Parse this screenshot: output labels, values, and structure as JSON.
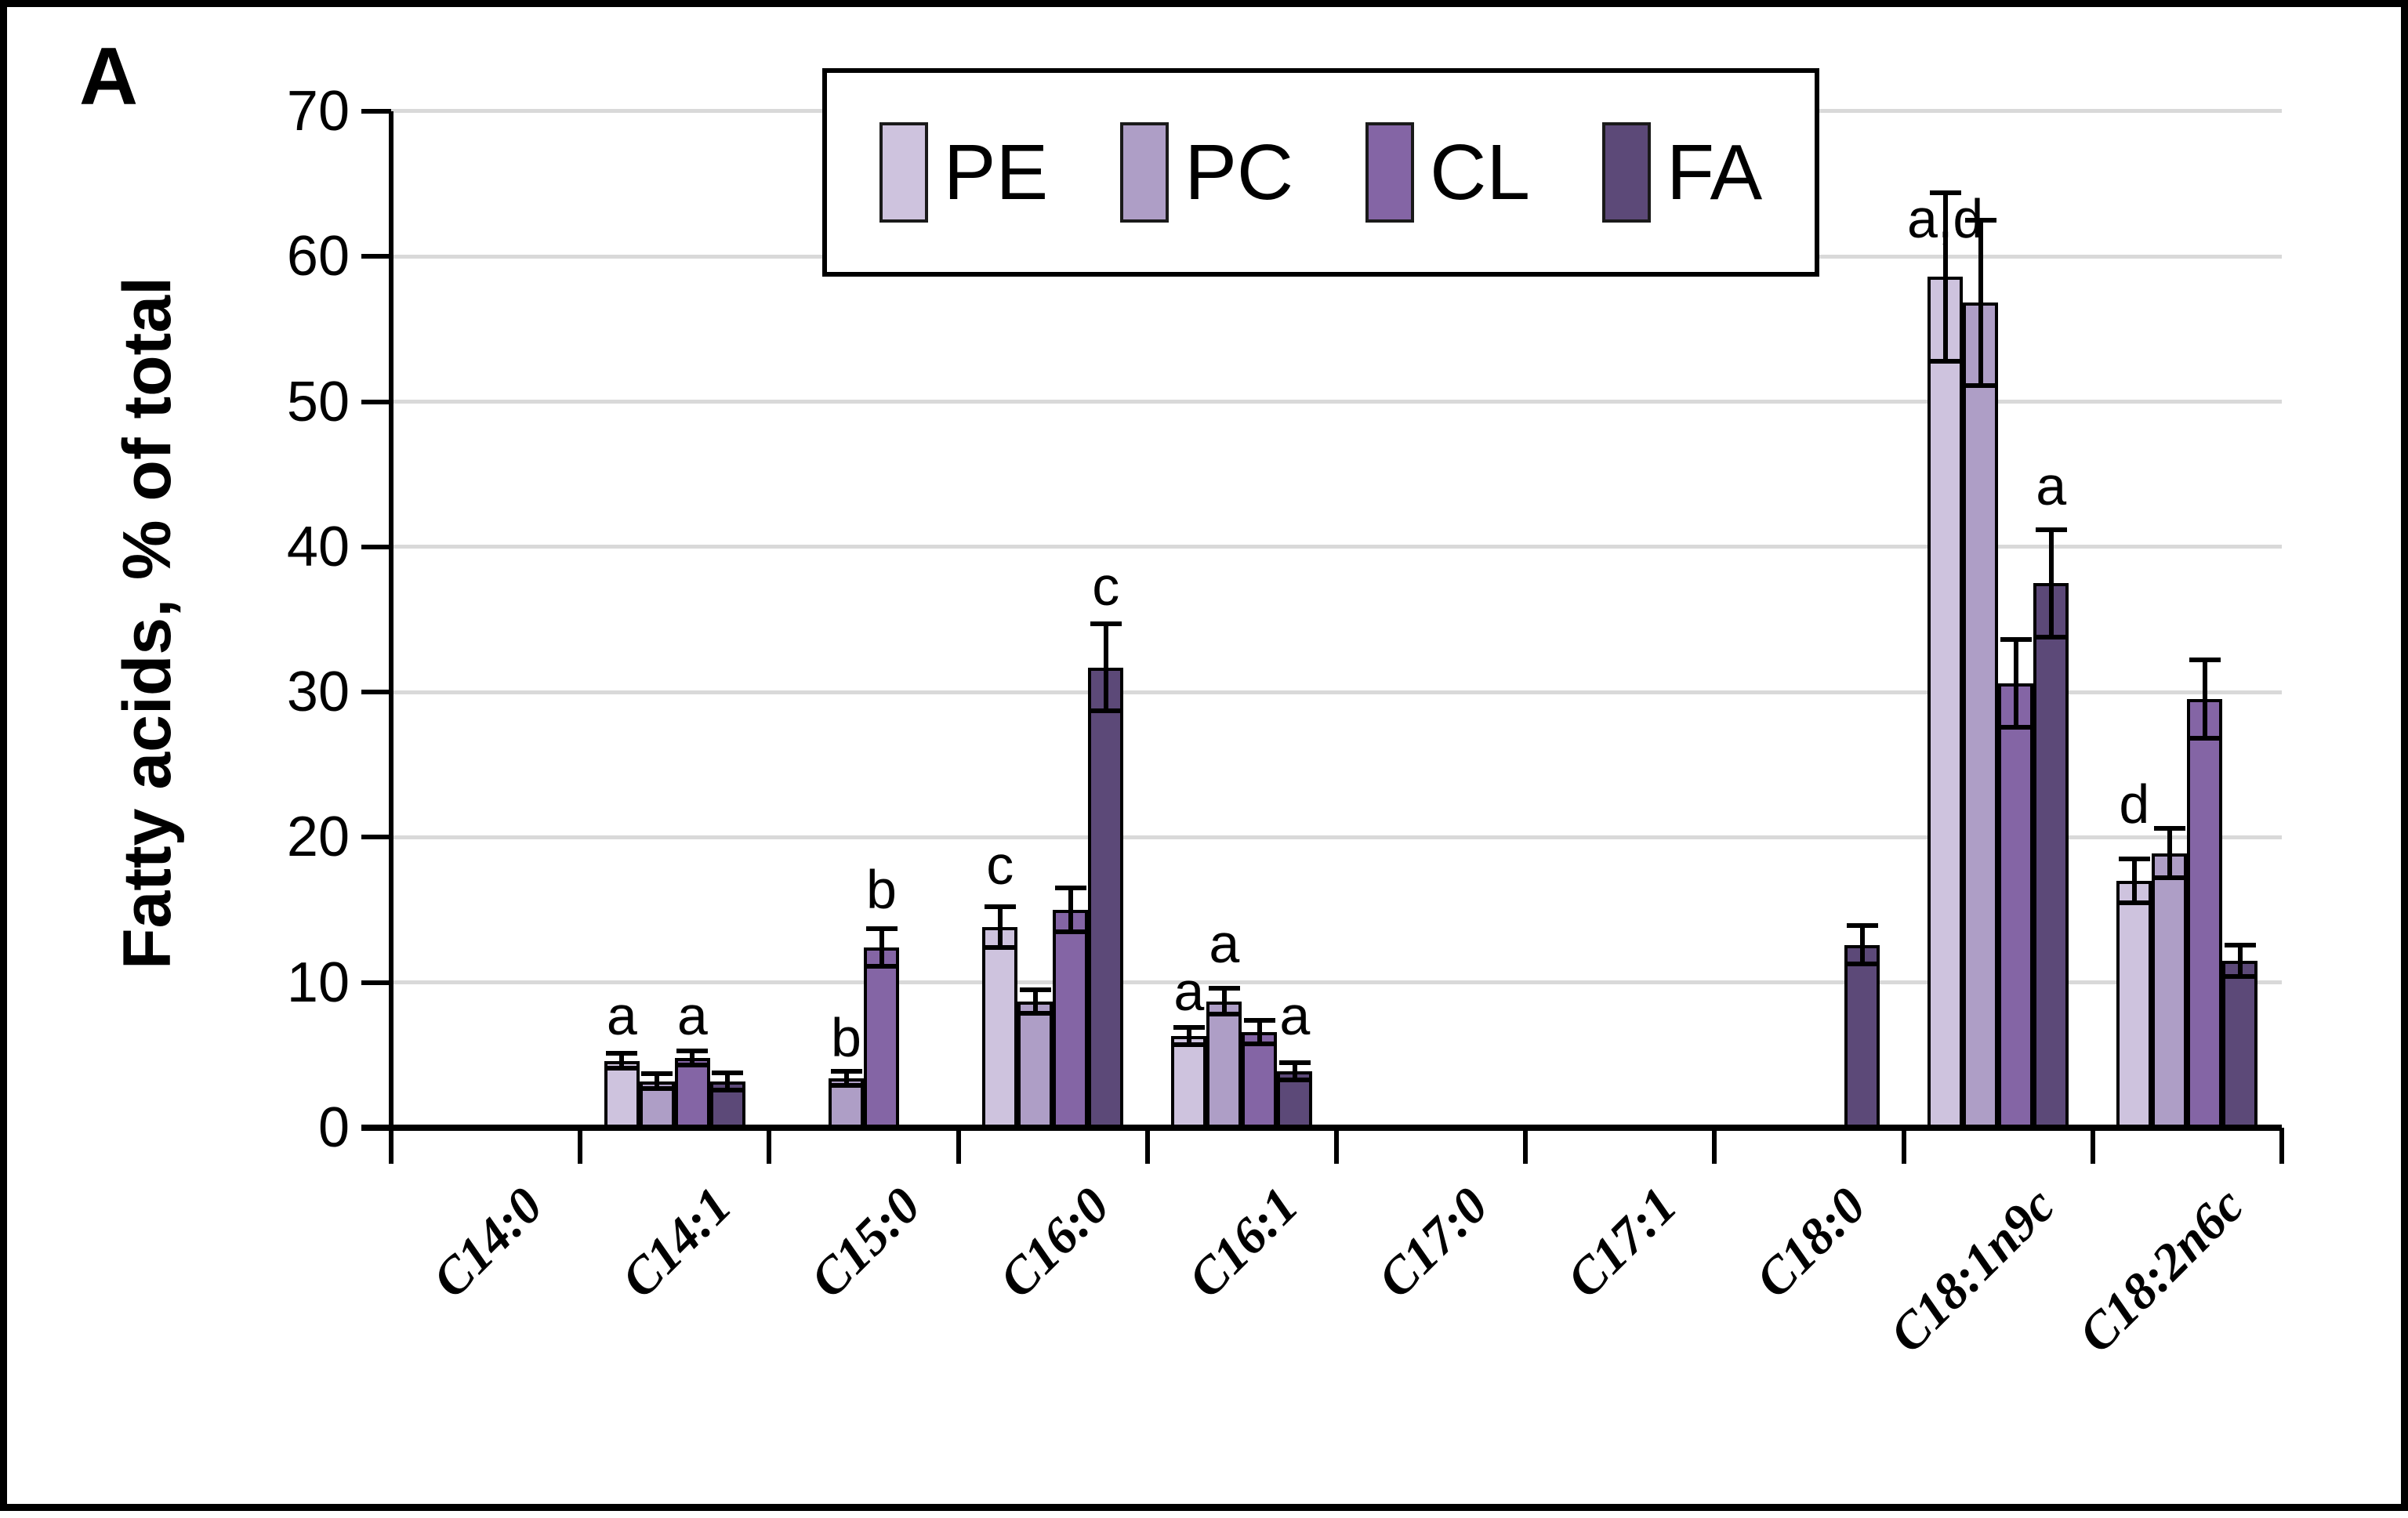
{
  "chart_data": {
    "type": "bar",
    "panel_label": "A",
    "ylabel": "Fatty acids, % of total",
    "ylim": [
      0,
      70
    ],
    "yticks": [
      0,
      10,
      20,
      30,
      40,
      50,
      60,
      70
    ],
    "grid": true,
    "legend_position": "top-center",
    "categories": [
      "C14:0",
      "C14:1",
      "C15:0",
      "C16:0",
      "C16:1",
      "C17:0",
      "C17:1",
      "C18:0",
      "C18:1n9c",
      "C18:2n6c"
    ],
    "series": [
      {
        "name": "PE",
        "color": "#cec3de",
        "values": [
          0,
          4.6,
          0,
          13.8,
          6.3,
          0,
          0,
          0,
          58.6,
          17.0
        ],
        "errors": [
          0,
          0.5,
          0,
          1.4,
          0.6,
          0,
          0,
          0,
          5.8,
          1.5
        ]
      },
      {
        "name": "PC",
        "color": "#ae9ec6",
        "values": [
          0,
          3.2,
          3.4,
          8.7,
          8.7,
          0,
          0,
          0,
          56.8,
          18.9
        ],
        "errors": [
          0,
          0.5,
          0.5,
          0.8,
          0.9,
          0,
          0,
          0,
          5.7,
          1.7
        ]
      },
      {
        "name": "CL",
        "color": "#8465a5",
        "values": [
          0,
          4.8,
          12.4,
          15.0,
          6.6,
          0,
          0,
          0,
          30.6,
          29.5
        ],
        "errors": [
          0,
          0.5,
          1.3,
          1.5,
          0.8,
          0,
          0,
          0,
          3.0,
          2.7
        ]
      },
      {
        "name": "FA",
        "color": "#5c4978",
        "values": [
          0,
          3.2,
          0,
          31.7,
          3.9,
          0,
          0,
          12.6,
          37.5,
          11.5
        ],
        "errors": [
          0,
          0.6,
          0,
          3.0,
          0.6,
          0,
          0,
          1.3,
          3.7,
          1.1
        ]
      }
    ],
    "annotations": [
      {
        "category_index": 1,
        "series_index": 0,
        "text": "a",
        "y": 7.7
      },
      {
        "category_index": 1,
        "series_index": 2,
        "text": "a",
        "y": 7.7
      },
      {
        "category_index": 2,
        "series_index": 1,
        "text": "b",
        "y": 6.2
      },
      {
        "category_index": 2,
        "series_index": 2,
        "text": "b",
        "y": 16.4
      },
      {
        "category_index": 3,
        "series_index": 0,
        "text": "c",
        "y": 18.1
      },
      {
        "category_index": 3,
        "series_index": 3,
        "text": "c",
        "y": 37.3
      },
      {
        "category_index": 4,
        "series_index": 0,
        "text": "a",
        "y": 9.4
      },
      {
        "category_index": 4,
        "series_index": 1,
        "text": "a",
        "y": 12.7
      },
      {
        "category_index": 4,
        "series_index": 3,
        "text": "a",
        "y": 7.7
      },
      {
        "category_index": 8,
        "series_index": 0,
        "text": "a,d",
        "y": 62.6
      },
      {
        "category_index": 8,
        "series_index": 3,
        "text": "a",
        "y": 44.2
      },
      {
        "category_index": 9,
        "series_index": 0,
        "text": "d",
        "y": 22.3
      }
    ]
  },
  "colors": {
    "gridline": "#d9d9d9",
    "axis": "#000000",
    "background": "#ffffff",
    "figure_border": "#000000"
  }
}
